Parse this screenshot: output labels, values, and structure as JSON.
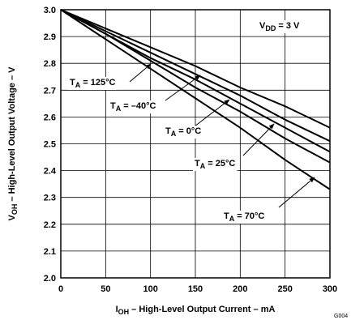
{
  "chart_data": {
    "type": "line",
    "x_label": {
      "main": "I",
      "sub": "OH",
      "rest": " – High-Level Output Current – mA"
    },
    "y_label": {
      "main": "V",
      "sub": "OH",
      "rest": " – High-Level Output Voltage – V"
    },
    "x": [
      0,
      50,
      100,
      150,
      200,
      250,
      300
    ],
    "series": [
      {
        "color": "#000000",
        "values": [
          3.0,
          2.93,
          2.86,
          2.79,
          2.71,
          2.64,
          2.56
        ]
      },
      {
        "color": "#000000",
        "values": [
          3.0,
          2.92,
          2.84,
          2.76,
          2.68,
          2.59,
          2.51
        ]
      },
      {
        "color": "#000000",
        "values": [
          3.0,
          2.91,
          2.82,
          2.74,
          2.65,
          2.56,
          2.47
        ]
      },
      {
        "color": "#000000",
        "values": [
          3.0,
          2.91,
          2.81,
          2.71,
          2.62,
          2.52,
          2.43
        ]
      },
      {
        "color": "#000000",
        "values": [
          3.0,
          2.89,
          2.78,
          2.67,
          2.56,
          2.44,
          2.33
        ]
      }
    ],
    "annotations": [
      {
        "main": "V",
        "sub": "DD",
        "rest": " = 3 V"
      },
      {
        "main": "T",
        "sub": "A",
        "rest": " = 125°C"
      },
      {
        "main": "T",
        "sub": "A",
        "rest": " = –40°C"
      },
      {
        "main": "T",
        "sub": "A",
        "rest": " = 0°C"
      },
      {
        "main": "T",
        "sub": "A",
        "rest": " = 25°C"
      },
      {
        "main": "T",
        "sub": "A",
        "rest": " = 70°C"
      }
    ],
    "figure_id": "G004",
    "xlim": [
      0,
      300
    ],
    "xticks": [
      0,
      50,
      100,
      150,
      200,
      250,
      300
    ],
    "ylim": [
      2.0,
      3.0
    ],
    "yticks": [
      {
        "value": 2.0,
        "label": "2.0"
      },
      2.1,
      2.2,
      2.3,
      2.4,
      2.5,
      2.6,
      2.7,
      2.8,
      2.9,
      {
        "value": 3.0,
        "label": "3.0"
      }
    ],
    "grid": true
  }
}
